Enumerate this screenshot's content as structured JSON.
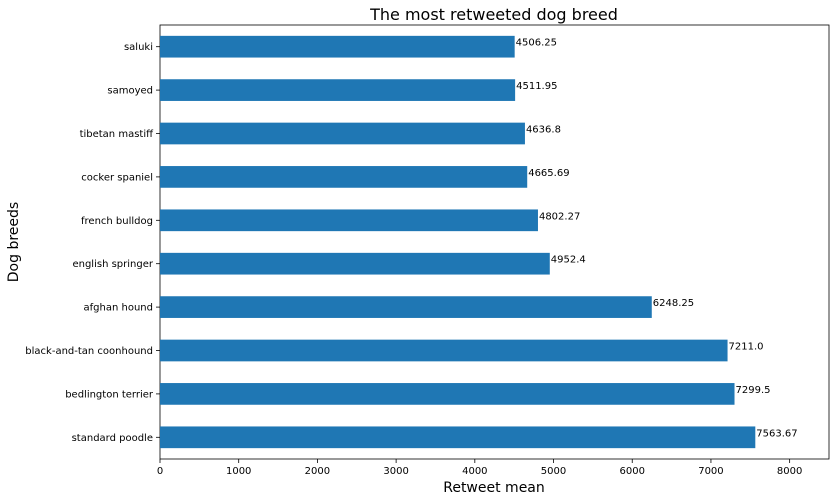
{
  "chart_data": {
    "type": "bar",
    "orientation": "horizontal",
    "title": "The most retweeted dog breed",
    "xlabel": "Retweet mean",
    "ylabel": "Dog breeds",
    "categories": [
      "standard poodle",
      "bedlington terrier",
      "black-and-tan coonhound",
      "afghan hound",
      "english springer",
      "french bulldog",
      "cocker spaniel",
      "tibetan mastiff",
      "samoyed",
      "saluki"
    ],
    "values": [
      7563.67,
      7299.5,
      7211.0,
      6248.25,
      4952.4,
      4802.27,
      4665.69,
      4636.8,
      4511.95,
      4506.25
    ],
    "value_labels": [
      "7563.67",
      "7299.5",
      "7211.0",
      "6248.25",
      "4952.4",
      "4802.27",
      "4665.69",
      "4636.8",
      "4511.95",
      "4506.25"
    ],
    "xlim": [
      0,
      8500
    ],
    "xticks": [
      0,
      1000,
      2000,
      3000,
      4000,
      5000,
      6000,
      7000,
      8000
    ],
    "xtick_labels": [
      "0",
      "1000",
      "2000",
      "3000",
      "4000",
      "5000",
      "6000",
      "7000",
      "8000"
    ],
    "bar_color": "#1f77b4",
    "grid": false,
    "legend": "none"
  }
}
